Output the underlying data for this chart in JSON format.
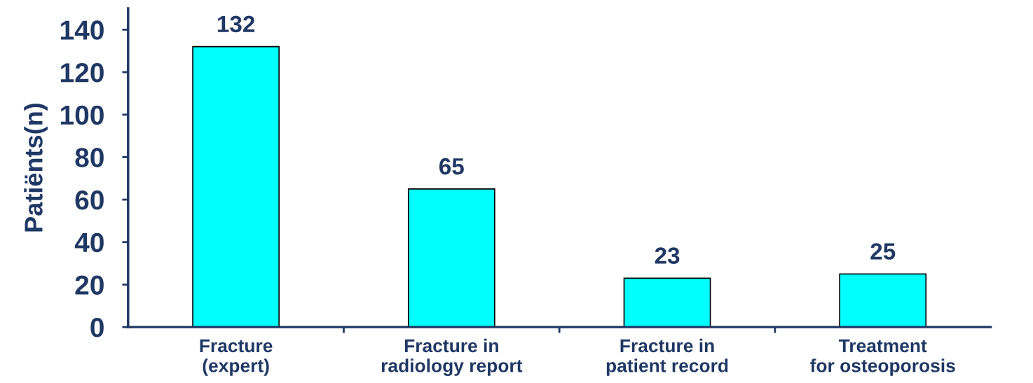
{
  "chart_data": {
    "type": "bar",
    "ylabel": "Patiënts(n)",
    "categories": [
      "Fracture\n(expert)",
      "Fracture in\nradiology report",
      "Fracture in\npatient record",
      "Treatment\nfor osteoporosis"
    ],
    "values": [
      132,
      65,
      23,
      25
    ],
    "color": "#00ffff",
    "ylim": [
      0,
      150
    ],
    "yticks": [
      0,
      20,
      40,
      60,
      80,
      100,
      120,
      140
    ],
    "grid": false,
    "data_labels": true
  }
}
